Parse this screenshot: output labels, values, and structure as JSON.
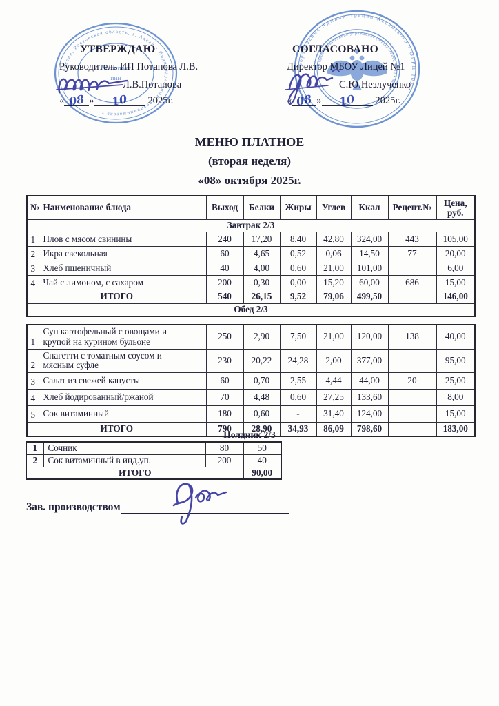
{
  "document": {
    "title_lines": [
      "МЕНЮ ПЛАТНОЕ",
      "(вторая неделя)",
      "«08» октября 2025г."
    ]
  },
  "approvals": {
    "left": {
      "heading": "УТВЕРЖДАЮ",
      "role": "Руководитель ИП Потапова Л.В.",
      "name": "Л.В.Потапова",
      "quote_open": "«",
      "quote_close": "»",
      "day": "08",
      "month": "10",
      "year": "2025г."
    },
    "right": {
      "heading": "СОГЛАСОВАНО",
      "role": "Директор МБОУ Лицей №1",
      "name": "С.Ю.Незлученко",
      "quote_open": "«",
      "quote_close": "»",
      "day": "08",
      "month": "10",
      "year": "2025г."
    }
  },
  "stamps": {
    "left": {
      "ring_text": "Россия, Ростовская область, г. Аксай • Индивидуальный предприниматель •",
      "center_line1": "Потапова",
      "center_line2": "ИНН"
    },
    "right": {
      "outer_ring_text": "образования Администрации Аксайского • ОГРН 102 •",
      "inner_ring_text": "общеобразовательное учреждение (МБОУ Лицей № 1) • инн •"
    }
  },
  "table": {
    "headers": [
      "№",
      "Наименование блюда",
      "Выход",
      "Белки",
      "Жиры",
      "Углев",
      "Ккал",
      "Рецепт.№",
      "Цена,\nруб."
    ],
    "breakfast": {
      "section_label": "Завтрак  2/3",
      "rows": [
        {
          "num": "1",
          "name": "Плов с мясом свинины",
          "out": "240",
          "protein": "17,20",
          "fat": "8,40",
          "carb": "42,80",
          "kcal": "324,00",
          "recipe": "443",
          "price": "105,00"
        },
        {
          "num": "2",
          "name": "Икра свекольная",
          "out": "60",
          "protein": "4,65",
          "fat": "0,52",
          "carb": "0,06",
          "kcal": "14,50",
          "recipe": "77",
          "price": "20,00"
        },
        {
          "num": "3",
          "name": "Хлеб пшеничный",
          "out": "40",
          "protein": "4,00",
          "fat": "0,60",
          "carb": "21,00",
          "kcal": "101,00",
          "recipe": "",
          "price": "6,00"
        },
        {
          "num": "4",
          "name": "Чай с лимоном, с сахаром",
          "out": "200",
          "protein": "0,30",
          "fat": "0,00",
          "carb": "15,20",
          "kcal": "60,00",
          "recipe": "686",
          "price": "15,00"
        }
      ],
      "total": {
        "label": "ИТОГО",
        "out": "540",
        "protein": "26,15",
        "fat": "9,52",
        "carb": "79,06",
        "kcal": "499,50",
        "recipe": "",
        "price": "146,00"
      }
    },
    "lunch_label": "Обед  2/3",
    "lunch": {
      "rows": [
        {
          "num": "1",
          "name": "Суп картофельный с овощами и\nкрупой на курином бульоне",
          "out": "250",
          "protein": "2,90",
          "fat": "7,50",
          "carb": "21,00",
          "kcal": "120,00",
          "recipe": "138",
          "price": "40,00"
        },
        {
          "num": "2",
          "name": "Спагетти с томатным соусом и\nмясным суфле",
          "out": "230",
          "protein": "20,22",
          "fat": "24,28",
          "carb": "2,00",
          "kcal": "377,00",
          "recipe": "",
          "price": "95,00"
        },
        {
          "num": "3",
          "name": "Салат из свежей капусты",
          "out": "60",
          "protein": "0,70",
          "fat": "2,55",
          "carb": "4,44",
          "kcal": "44,00",
          "recipe": "20",
          "price": "25,00"
        },
        {
          "num": "4",
          "name": "Хлеб йодированный/ржаной",
          "out": "70",
          "protein": "4,48",
          "fat": "0,60",
          "carb": "27,25",
          "kcal": "133,60",
          "recipe": "",
          "price": "8,00"
        },
        {
          "num": "5",
          "name": "Сок витаминный",
          "out": "180",
          "protein": "0,60",
          "fat": "-",
          "carb": "31,40",
          "kcal": "124,00",
          "recipe": "",
          "price": "15,00"
        }
      ],
      "total": {
        "label": "ИТОГО",
        "out": "790",
        "protein": "28,90",
        "fat": "34,93",
        "carb": "86,09",
        "kcal": "798,60",
        "recipe": "",
        "price": "183,00"
      }
    },
    "snack": {
      "section_label": "Полдник 2/3",
      "rows": [
        {
          "num": "1",
          "name": "Сочник",
          "out": "80",
          "price": "50"
        },
        {
          "num": "2",
          "name": "Сок витаминный в инд.уп.",
          "out": "200",
          "price": "40"
        }
      ],
      "total": {
        "label": "ИТОГО",
        "price": "90,00"
      }
    }
  },
  "footer": {
    "label": "Зав. производством"
  }
}
